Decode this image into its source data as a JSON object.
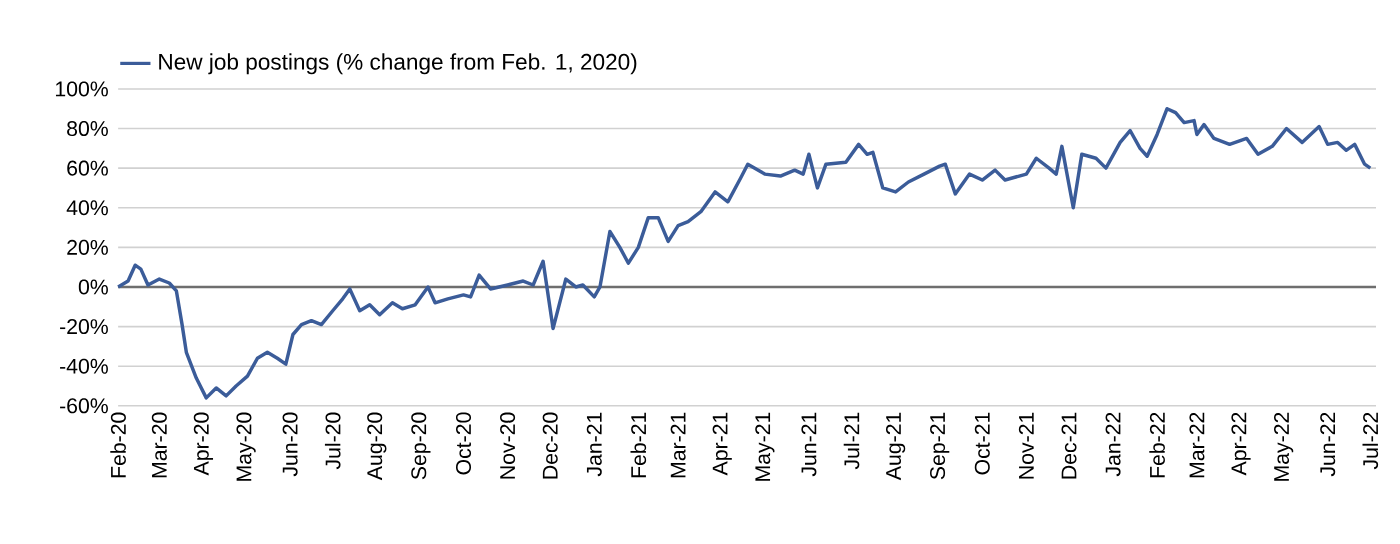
{
  "chart_data": {
    "type": "line",
    "x": [
      "2020-02-01",
      "2020-02-08",
      "2020-02-13",
      "2020-02-17",
      "2020-02-22",
      "2020-03-01",
      "2020-03-08",
      "2020-03-13",
      "2020-03-17",
      "2020-03-20",
      "2020-03-27",
      "2020-04-03",
      "2020-04-10",
      "2020-04-17",
      "2020-04-24",
      "2020-05-02",
      "2020-05-09",
      "2020-05-16",
      "2020-05-23",
      "2020-05-29",
      "2020-06-03",
      "2020-06-09",
      "2020-06-16",
      "2020-06-23",
      "2020-07-01",
      "2020-07-08",
      "2020-07-13",
      "2020-07-20",
      "2020-07-27",
      "2020-08-03",
      "2020-08-12",
      "2020-08-19",
      "2020-08-28",
      "2020-09-06",
      "2020-09-11",
      "2020-09-20",
      "2020-10-01",
      "2020-10-06",
      "2020-10-12",
      "2020-10-20",
      "2020-11-01",
      "2020-11-12",
      "2020-11-19",
      "2020-11-26",
      "2020-12-03",
      "2020-12-12",
      "2020-12-19",
      "2020-12-24",
      "2021-01-01",
      "2021-01-05",
      "2021-01-12",
      "2021-01-19",
      "2021-01-25",
      "2021-02-01",
      "2021-02-08",
      "2021-02-15",
      "2021-02-22",
      "2021-03-01",
      "2021-03-08",
      "2021-03-17",
      "2021-03-27",
      "2021-04-05",
      "2021-04-14",
      "2021-04-19",
      "2021-05-01",
      "2021-05-12",
      "2021-05-22",
      "2021-05-28",
      "2021-06-01",
      "2021-06-07",
      "2021-06-13",
      "2021-06-27",
      "2021-07-06",
      "2021-07-12",
      "2021-07-16",
      "2021-07-23",
      "2021-08-01",
      "2021-08-10",
      "2021-08-21",
      "2021-09-01",
      "2021-09-05",
      "2021-09-12",
      "2021-09-22",
      "2021-10-01",
      "2021-10-10",
      "2021-10-17",
      "2021-11-01",
      "2021-11-08",
      "2021-11-17",
      "2021-11-22",
      "2021-11-26",
      "2021-12-04",
      "2021-12-10",
      "2021-12-20",
      "2021-12-27",
      "2022-01-06",
      "2022-01-13",
      "2022-01-20",
      "2022-01-25",
      "2022-02-01",
      "2022-02-08",
      "2022-02-14",
      "2022-02-20",
      "2022-02-27",
      "2022-03-01",
      "2022-03-06",
      "2022-03-13",
      "2022-03-24",
      "2022-04-05",
      "2022-04-13",
      "2022-04-23",
      "2022-05-03",
      "2022-05-14",
      "2022-05-26",
      "2022-06-01",
      "2022-06-08",
      "2022-06-14",
      "2022-06-20",
      "2022-06-27",
      "2022-07-01"
    ],
    "series": [
      {
        "name": "New job postings (% change from Feb. 1, 2020)",
        "color": "#3b5c99",
        "values": [
          0,
          3,
          11,
          9,
          1,
          4,
          2,
          -2,
          -19,
          -33,
          -46,
          -56,
          -51,
          -55,
          -50,
          -45,
          -36,
          -33,
          -36,
          -39,
          -24,
          -19,
          -17,
          -19,
          -12,
          -6,
          -1,
          -12,
          -9,
          -14,
          -8,
          -11,
          -9,
          0,
          -8,
          -6,
          -4,
          -5,
          6,
          -1,
          1,
          3,
          1,
          13,
          -21,
          4,
          0,
          1,
          -5,
          0,
          28,
          20,
          12,
          20,
          35,
          35,
          23,
          31,
          33,
          38,
          48,
          43,
          55,
          62,
          57,
          56,
          59,
          57,
          67,
          50,
          62,
          63,
          72,
          67,
          68,
          50,
          48,
          53,
          57,
          61,
          62,
          47,
          57,
          54,
          59,
          54,
          57,
          65,
          60,
          57,
          71,
          40,
          67,
          65,
          60,
          73,
          79,
          70,
          66,
          77,
          90,
          88,
          83,
          84,
          77,
          82,
          75,
          72,
          75,
          67,
          71,
          80,
          73,
          81,
          72,
          73,
          69,
          72,
          62,
          60
        ]
      }
    ],
    "xlim": [
      "2020-02-01",
      "2022-07-05"
    ],
    "xticks": [
      {
        "value": "2020-02-01",
        "label": "Feb-20"
      },
      {
        "value": "2020-03-01",
        "label": "Mar-20"
      },
      {
        "value": "2020-04-01",
        "label": "Apr-20"
      },
      {
        "value": "2020-05-01",
        "label": "May-20"
      },
      {
        "value": "2020-06-01",
        "label": "Jun-20"
      },
      {
        "value": "2020-07-01",
        "label": "Jul-20"
      },
      {
        "value": "2020-08-01",
        "label": "Aug-20"
      },
      {
        "value": "2020-09-01",
        "label": "Sep-20"
      },
      {
        "value": "2020-10-01",
        "label": "Oct-20"
      },
      {
        "value": "2020-11-01",
        "label": "Nov-20"
      },
      {
        "value": "2020-12-01",
        "label": "Dec-20"
      },
      {
        "value": "2021-01-01",
        "label": "Jan-21"
      },
      {
        "value": "2021-02-01",
        "label": "Feb-21"
      },
      {
        "value": "2021-03-01",
        "label": "Mar-21"
      },
      {
        "value": "2021-04-01",
        "label": "Apr-21"
      },
      {
        "value": "2021-05-01",
        "label": "May-21"
      },
      {
        "value": "2021-06-01",
        "label": "Jun-21"
      },
      {
        "value": "2021-07-01",
        "label": "Jul-21"
      },
      {
        "value": "2021-08-01",
        "label": "Aug-21"
      },
      {
        "value": "2021-09-01",
        "label": "Sep-21"
      },
      {
        "value": "2021-10-01",
        "label": "Oct-21"
      },
      {
        "value": "2021-11-01",
        "label": "Nov-21"
      },
      {
        "value": "2021-12-01",
        "label": "Dec-21"
      },
      {
        "value": "2022-01-01",
        "label": "Jan-22"
      },
      {
        "value": "2022-02-01",
        "label": "Feb-22"
      },
      {
        "value": "2022-03-01",
        "label": "Mar-22"
      },
      {
        "value": "2022-04-01",
        "label": "Apr-22"
      },
      {
        "value": "2022-05-01",
        "label": "May-22"
      },
      {
        "value": "2022-06-01",
        "label": "Jun-22"
      },
      {
        "value": "2022-07-01",
        "label": "Jul-22"
      }
    ],
    "ylim": [
      -60,
      100
    ],
    "yticks": [
      {
        "value": -60,
        "label": "-60%"
      },
      {
        "value": -40,
        "label": "-40%"
      },
      {
        "value": -20,
        "label": "-20%"
      },
      {
        "value": 0,
        "label": "0%"
      },
      {
        "value": 20,
        "label": "20%"
      },
      {
        "value": 40,
        "label": "40%"
      },
      {
        "value": 60,
        "label": "60%"
      },
      {
        "value": 80,
        "label": "80%"
      },
      {
        "value": 100,
        "label": "100%"
      }
    ],
    "ref_lines": [
      {
        "axis": "y",
        "value": 0,
        "color": "#6e6e6e"
      }
    ],
    "grid": "y",
    "legend": "top left"
  }
}
